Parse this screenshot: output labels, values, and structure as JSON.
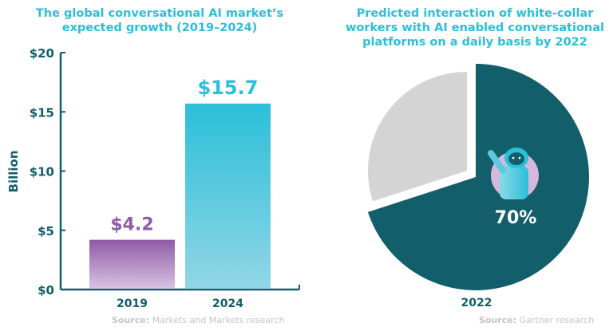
{
  "colors": {
    "teal_dark": "#135e6b",
    "cyan": "#2bbfd9",
    "purple": "#8f5aa6",
    "gray": "#d4d4d4",
    "source_gray": "#c4c4c4"
  },
  "chart_data": [
    {
      "type": "bar",
      "title": "The global conversational AI market’s expected growth (2019–2024)",
      "ylabel": "Billion",
      "categories": [
        "2019",
        "2024"
      ],
      "values": [
        4.2,
        15.7
      ],
      "data_labels": [
        "$4.2",
        "$15.7"
      ],
      "yticks": [
        "$0",
        "$5",
        "$10",
        "$15",
        "$20"
      ],
      "ytick_values": [
        0,
        5,
        10,
        15,
        20
      ],
      "ylim": [
        0,
        20
      ],
      "grid": false,
      "source_label": "Source:",
      "source_text": "Markets and Markets research"
    },
    {
      "type": "pie",
      "title": "Predicted interaction of white-collar workers with AI enabled conversational platforms on a daily basis by 2022",
      "values": [
        70,
        30
      ],
      "data_label": "70%",
      "xlabel": "2022",
      "icon": "robot-icon",
      "source_label": "Source:",
      "source_text": "Gartner research"
    }
  ]
}
